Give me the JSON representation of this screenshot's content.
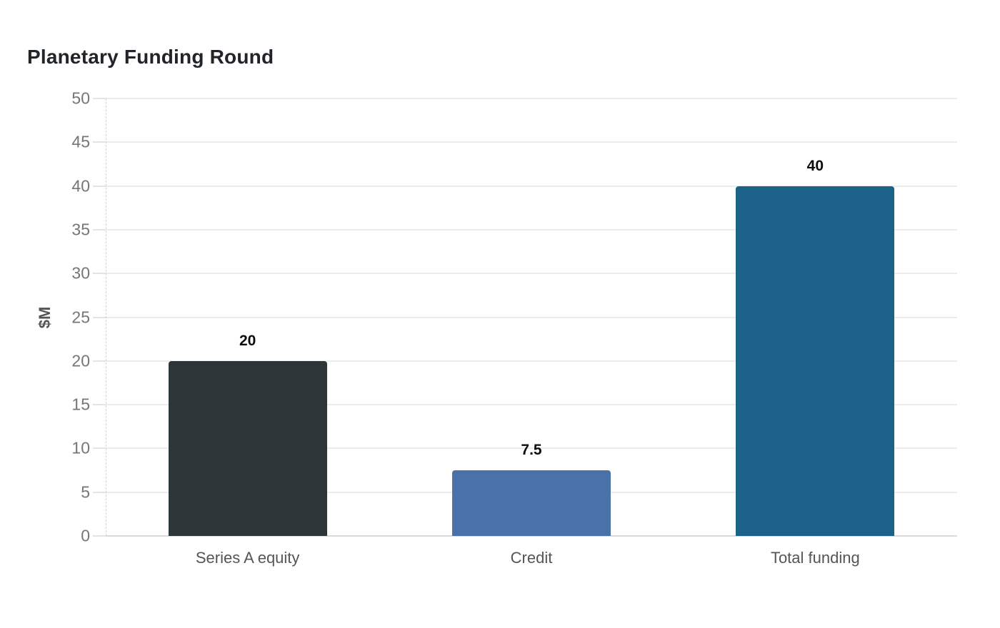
{
  "page": {
    "background": "#ffffff"
  },
  "chart_data": {
    "type": "bar",
    "title": "Planetary Funding Round",
    "xlabel": "",
    "ylabel": "$M",
    "categories": [
      "Series A equity",
      "Credit",
      "Total funding"
    ],
    "values": [
      20,
      7.5,
      40
    ],
    "value_labels": [
      "20",
      "7.5",
      "40"
    ],
    "bar_colors": [
      "#2c3638",
      "#4a71a8",
      "#1b6189"
    ],
    "ylim": [
      0,
      50
    ],
    "yticks": [
      0,
      5,
      10,
      15,
      20,
      25,
      30,
      35,
      40,
      45,
      50
    ],
    "grid": "horizontal",
    "legend": "none",
    "colors": {
      "title": "#212529",
      "tick_label": "#767676",
      "axis_label": "#555555",
      "category_label": "#555555",
      "value_label": "#0d0d0d",
      "gridline": "#ececec",
      "zero_line": "#dadada",
      "axis_dashed_line": "#d4d4d4"
    }
  }
}
